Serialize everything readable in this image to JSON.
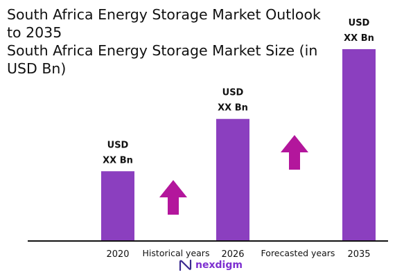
{
  "title_line1": "South Africa Energy Storage Market Outlook\nto 2035",
  "title_line2": "South Africa Energy Storage Market Size (in\nUSD Bn)",
  "colors": {
    "bar": "#8b3fbf",
    "arrow": "#b3169c",
    "axis": "#111111"
  },
  "chart_data": {
    "type": "bar",
    "categories": [
      "2020",
      "2026",
      "2035"
    ],
    "values": [
      1,
      1.75,
      2.75
    ],
    "data_labels": [
      [
        "USD",
        "XX Bn"
      ],
      [
        "USD",
        "XX Bn"
      ],
      [
        "USD",
        "XX Bn"
      ]
    ],
    "period_labels": [
      "Historical years",
      "Forecasted years"
    ],
    "ylim": [
      0,
      2.75
    ],
    "grid": false,
    "legend": "none"
  },
  "brand": {
    "name": "nexdigm",
    "icon": "nexdigm-logo-icon"
  }
}
